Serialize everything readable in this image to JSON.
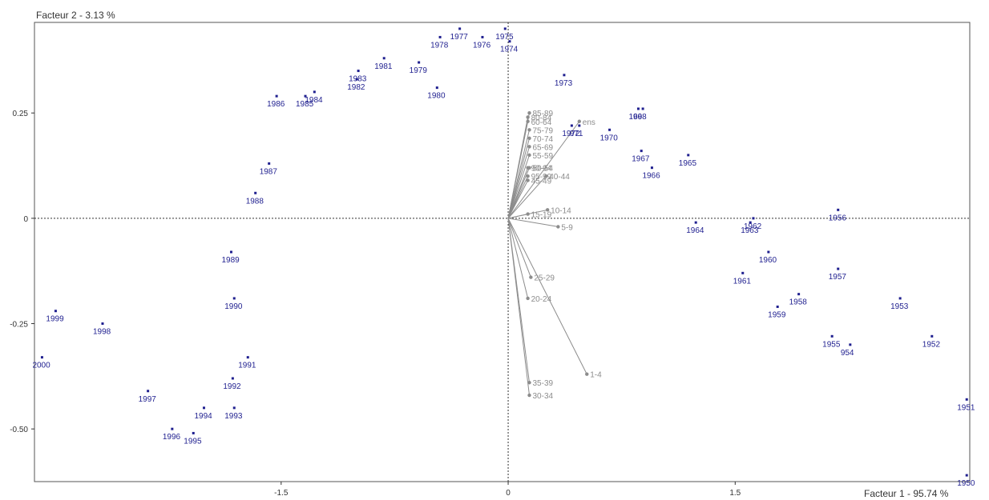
{
  "chart_data": {
    "type": "scatter",
    "title": "",
    "xlabel": "Facteur 1  -  95.74 %",
    "ylabel": "Facteur 2  -  3.13 %",
    "xlim": [
      -3.13,
      3.05
    ],
    "ylim": [
      -0.625,
      0.465
    ],
    "xticks": [
      {
        "value": -1.5,
        "label": "-1.5"
      },
      {
        "value": 0,
        "label": "0"
      },
      {
        "value": 1.5,
        "label": "1.5"
      }
    ],
    "yticks": [
      {
        "value": 0.25,
        "label": "0.25"
      },
      {
        "value": 0,
        "label": "0"
      },
      {
        "value": -0.25,
        "label": "-0.25"
      },
      {
        "value": -0.5,
        "label": "-0.50"
      }
    ],
    "colors": {
      "years": "#1f1f8f",
      "variables": "#8c8c8c",
      "axis": "#333333"
    },
    "years": [
      {
        "label": "1950",
        "x": 3.03,
        "y": -0.61
      },
      {
        "label": "1951",
        "x": 3.03,
        "y": -0.43
      },
      {
        "label": "1952",
        "x": 2.8,
        "y": -0.28
      },
      {
        "label": "1953",
        "x": 2.59,
        "y": -0.19
      },
      {
        "label": "954",
        "x": 2.26,
        "y": -0.3
      },
      {
        "label": "1955",
        "x": 2.14,
        "y": -0.28
      },
      {
        "label": "1956",
        "x": 2.18,
        "y": 0.02
      },
      {
        "label": "1957",
        "x": 2.18,
        "y": -0.12
      },
      {
        "label": "1958",
        "x": 1.92,
        "y": -0.18
      },
      {
        "label": "1959",
        "x": 1.78,
        "y": -0.21
      },
      {
        "label": "1960",
        "x": 1.72,
        "y": -0.08
      },
      {
        "label": "1961",
        "x": 1.55,
        "y": -0.13
      },
      {
        "label": "1962",
        "x": 1.62,
        "y": 0.0
      },
      {
        "label": "1963",
        "x": 1.6,
        "y": -0.01
      },
      {
        "label": "1964",
        "x": 1.24,
        "y": -0.01
      },
      {
        "label": "1965",
        "x": 1.19,
        "y": 0.15
      },
      {
        "label": "1966",
        "x": 0.95,
        "y": 0.12
      },
      {
        "label": "1967",
        "x": 0.88,
        "y": 0.16
      },
      {
        "label": "1968",
        "x": 0.86,
        "y": 0.26
      },
      {
        "label": "69",
        "x": 0.89,
        "y": 0.26
      },
      {
        "label": "1970",
        "x": 0.67,
        "y": 0.21
      },
      {
        "label": "971",
        "x": 0.47,
        "y": 0.22
      },
      {
        "label": "1972",
        "x": 0.42,
        "y": 0.22
      },
      {
        "label": "1973",
        "x": 0.37,
        "y": 0.34
      },
      {
        "label": "1974",
        "x": 0.01,
        "y": 0.42
      },
      {
        "label": "1975",
        "x": -0.02,
        "y": 0.45
      },
      {
        "label": "1976",
        "x": -0.17,
        "y": 0.43
      },
      {
        "label": "1977",
        "x": -0.32,
        "y": 0.45
      },
      {
        "label": "1978",
        "x": -0.45,
        "y": 0.43
      },
      {
        "label": "1979",
        "x": -0.59,
        "y": 0.37
      },
      {
        "label": "1980",
        "x": -0.47,
        "y": 0.31
      },
      {
        "label": "1981",
        "x": -0.82,
        "y": 0.38
      },
      {
        "label": "1982",
        "x": -1.0,
        "y": 0.33
      },
      {
        "label": "1983",
        "x": -0.99,
        "y": 0.35
      },
      {
        "label": "1984",
        "x": -1.28,
        "y": 0.3
      },
      {
        "label": "1985",
        "x": -1.34,
        "y": 0.29
      },
      {
        "label": "1986",
        "x": -1.53,
        "y": 0.29
      },
      {
        "label": "1987",
        "x": -1.58,
        "y": 0.13
      },
      {
        "label": "1988",
        "x": -1.67,
        "y": 0.06
      },
      {
        "label": "1989",
        "x": -1.83,
        "y": -0.08
      },
      {
        "label": "1990",
        "x": -1.81,
        "y": -0.19
      },
      {
        "label": "1991",
        "x": -1.72,
        "y": -0.33
      },
      {
        "label": "1992",
        "x": -1.82,
        "y": -0.38
      },
      {
        "label": "1993",
        "x": -1.81,
        "y": -0.45
      },
      {
        "label": "1994",
        "x": -2.01,
        "y": -0.45
      },
      {
        "label": "1995",
        "x": -2.08,
        "y": -0.51
      },
      {
        "label": "1996",
        "x": -2.22,
        "y": -0.5
      },
      {
        "label": "1997",
        "x": -2.38,
        "y": -0.41
      },
      {
        "label": "1998",
        "x": -2.68,
        "y": -0.25
      },
      {
        "label": "1999",
        "x": -2.99,
        "y": -0.22
      },
      {
        "label": "2000",
        "x": -3.08,
        "y": -0.33
      }
    ],
    "variables": [
      {
        "label": "1-4",
        "x": 0.52,
        "y": -0.37
      },
      {
        "label": "5-9",
        "x": 0.33,
        "y": -0.02
      },
      {
        "label": "10-14",
        "x": 0.26,
        "y": 0.02
      },
      {
        "label": "15-19",
        "x": 0.13,
        "y": 0.01
      },
      {
        "label": "20-24",
        "x": 0.13,
        "y": -0.19
      },
      {
        "label": "25-29",
        "x": 0.15,
        "y": -0.14
      },
      {
        "label": "30-34",
        "x": 0.14,
        "y": -0.42
      },
      {
        "label": "35-39",
        "x": 0.14,
        "y": -0.39
      },
      {
        "label": "40-44",
        "x": 0.25,
        "y": 0.1
      },
      {
        "label": "45-49",
        "x": 0.13,
        "y": 0.09
      },
      {
        "label": "50-54",
        "x": 0.14,
        "y": 0.12
      },
      {
        "label": "55-59",
        "x": 0.14,
        "y": 0.15
      },
      {
        "label": "60-64",
        "x": 0.13,
        "y": 0.23
      },
      {
        "label": "65-69",
        "x": 0.14,
        "y": 0.17
      },
      {
        "label": "70-74",
        "x": 0.14,
        "y": 0.19
      },
      {
        "label": "75-79",
        "x": 0.14,
        "y": 0.21
      },
      {
        "label": "80-84",
        "x": 0.13,
        "y": 0.24
      },
      {
        "label": "85-89",
        "x": 0.14,
        "y": 0.25
      },
      {
        "label": "90-94",
        "x": 0.13,
        "y": 0.12
      },
      {
        "label": "95-99",
        "x": 0.13,
        "y": 0.1
      },
      {
        "label": "ens",
        "x": 0.47,
        "y": 0.23
      }
    ]
  }
}
